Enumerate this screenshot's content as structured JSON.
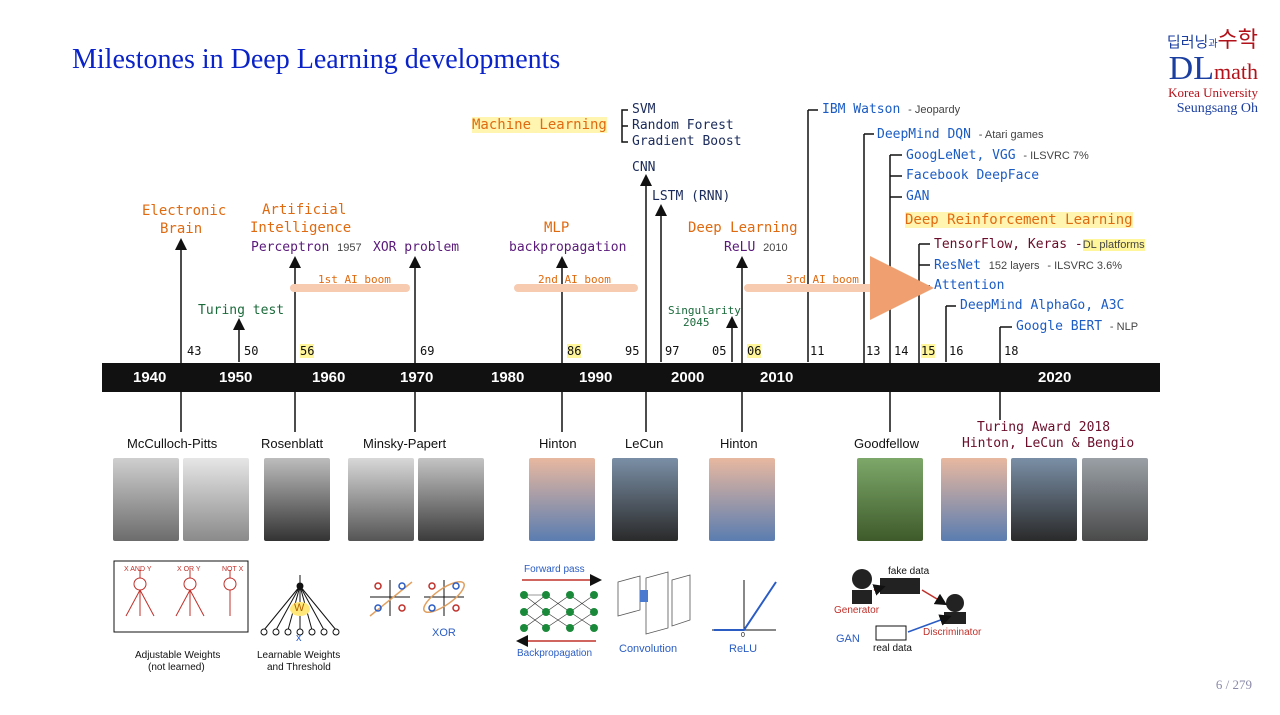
{
  "slide": {
    "title": "Milestones in Deep Learning developments",
    "page": "6 / 279"
  },
  "logo": {
    "korean_left": "딥러닝",
    "korean_mid": "과",
    "korean_right": "수학",
    "dl": "DL",
    "math": "math",
    "university": "Korea University",
    "author": "Seungsang Oh"
  },
  "timeline": {
    "decades": [
      "1940",
      "1950",
      "1960",
      "1970",
      "1980",
      "1990",
      "2000",
      "2010",
      "2020"
    ],
    "years": [
      "43",
      "50",
      "56",
      "69",
      "86",
      "95",
      "97",
      "05",
      "06",
      "11",
      "13",
      "14",
      "15",
      "16",
      "18"
    ]
  },
  "events": {
    "electronic_brain_1": "Electronic",
    "electronic_brain_2": "Brain",
    "turing_test": "Turing test",
    "ai_1": "Artificial",
    "ai_2": "Intelligence",
    "perceptron": "Perceptron",
    "perceptron_year": "1957",
    "first_boom": "1st AI boom",
    "xor_problem": "XOR problem",
    "machine_learning": "Machine Learning",
    "svm": "SVM",
    "random_forest": "Random Forest",
    "gradient_boost": "Gradient Boost",
    "mlp": "MLP",
    "backprop": "backpropagation",
    "second_boom": "2nd AI boom",
    "cnn": "CNN",
    "lstm": "LSTM (RNN)",
    "singularity_1": "Singularity",
    "singularity_2": "2045",
    "deep_learning": "Deep Learning",
    "relu": "ReLU",
    "relu_year": "2010",
    "third_boom": "3rd AI boom",
    "ibm_watson": "IBM Watson",
    "ibm_watson_note": "- Jeopardy",
    "deepmind_dqn": "DeepMind DQN",
    "deepmind_dqn_note": "- Atari games",
    "googlenet": "GoogLeNet, VGG",
    "googlenet_note": "- ILSVRC 7%",
    "deepface": "Facebook DeepFace",
    "gan": "GAN",
    "drl": "Deep Reinforcement Learning",
    "tensorflow": "TensorFlow, Keras",
    "tensorflow_note_dash": "-",
    "tensorflow_note": "DL platforms",
    "resnet": "ResNet",
    "resnet_layers": "152 layers",
    "resnet_note": "- ILSVRC 3.6%",
    "attention": "Attention",
    "alphago": "DeepMind AlphaGo, A3C",
    "bert": "Google BERT",
    "bert_note": "- NLP"
  },
  "people": {
    "mcculloch": "McCulloch-Pitts",
    "rosenblatt": "Rosenblatt",
    "minsky": "Minsky-Papert",
    "hinton1": "Hinton",
    "lecun": "LeCun",
    "hinton2": "Hinton",
    "goodfellow": "Goodfellow",
    "turing_award_1": "Turing Award 2018",
    "turing_award_2": "Hinton, LeCun & Bengio"
  },
  "figures": {
    "adjustable_1": "Adjustable Weights",
    "adjustable_2": "(not learned)",
    "learnable_1": "Learnable Weights",
    "learnable_2": "and Threshold",
    "xor": "XOR",
    "forward": "Forward pass",
    "backward": "Backpropagation",
    "convolution": "Convolution",
    "relu": "ReLU",
    "generator": "Generator",
    "fake_data": "fake data",
    "discriminator": "Discriminator",
    "gan": "GAN",
    "real_data": "real data",
    "and_label": "X AND Y",
    "or_label": "X OR Y",
    "not_label": "NOT X",
    "w_label": "W",
    "x_label": "x",
    "relu_zero": "0"
  },
  "colors": {
    "title": "#0a23c8",
    "orange": "#e06a10",
    "blue": "#1b5cc4",
    "purple": "#5a1a7a",
    "boom": "#f6cbb0",
    "highlight": "#fff59a"
  }
}
